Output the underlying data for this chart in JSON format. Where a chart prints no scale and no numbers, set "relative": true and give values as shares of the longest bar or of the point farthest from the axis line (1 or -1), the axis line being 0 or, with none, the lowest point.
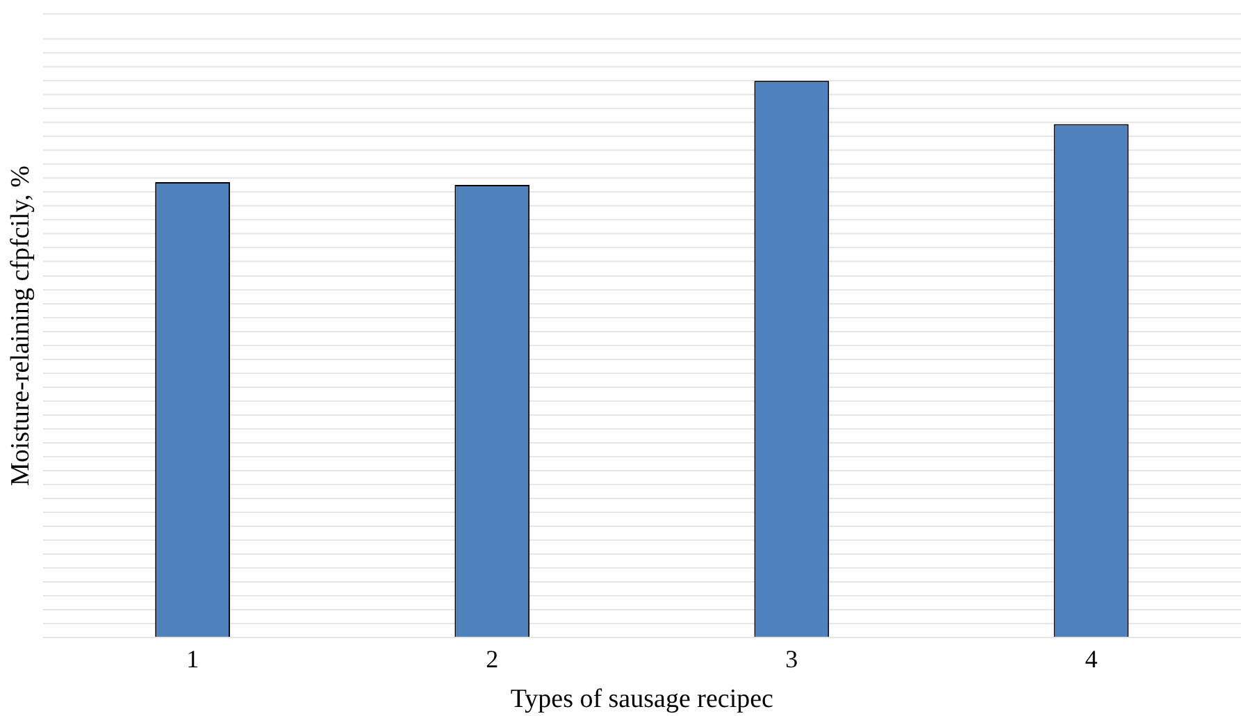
{
  "chart_data": {
    "type": "bar",
    "xlabel": "Types of sausage recipec",
    "ylabel": "Moisture-relaining cfpfcily, %",
    "categories": [
      "1",
      "2",
      "3",
      "4"
    ],
    "values": [
      0.818,
      0.813,
      1,
      0.922
    ],
    "color": "#4f81bd",
    "relative": true,
    "grid": "y"
  }
}
